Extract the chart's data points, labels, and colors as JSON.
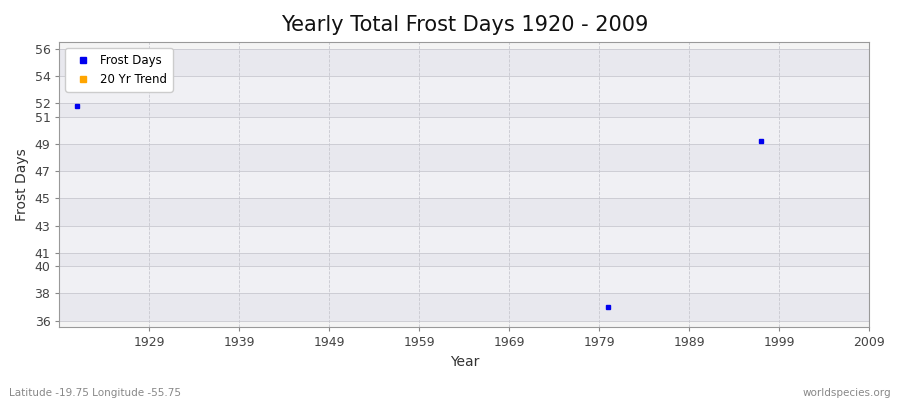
{
  "title": "Yearly Total Frost Days 1920 - 2009",
  "xlabel": "Year",
  "ylabel": "Frost Days",
  "background_color": "#f0f0f0",
  "plot_bg_color": "#f0f0f0",
  "grid_color": "#cccccc",
  "band_colors": [
    "#e8e8ee",
    "#f5f5f8"
  ],
  "data_points": [
    {
      "year": 1921,
      "value": 51.8
    },
    {
      "year": 1980,
      "value": 37.0
    },
    {
      "year": 1997,
      "value": 49.2
    }
  ],
  "point_color": "#0000ee",
  "trend_color": "#ffa500",
  "xlim": [
    1919,
    2009
  ],
  "ylim": [
    35.5,
    56.5
  ],
  "yticks": [
    36,
    38,
    40,
    41,
    43,
    45,
    47,
    49,
    51,
    52,
    54,
    56
  ],
  "xticks": [
    1929,
    1939,
    1949,
    1959,
    1969,
    1979,
    1989,
    1999,
    2009
  ],
  "title_fontsize": 15,
  "axis_label_fontsize": 10,
  "tick_fontsize": 9,
  "legend_labels": [
    "Frost Days",
    "20 Yr Trend"
  ],
  "footer_left": "Latitude -19.75 Longitude -55.75",
  "footer_right": "worldspecies.org"
}
